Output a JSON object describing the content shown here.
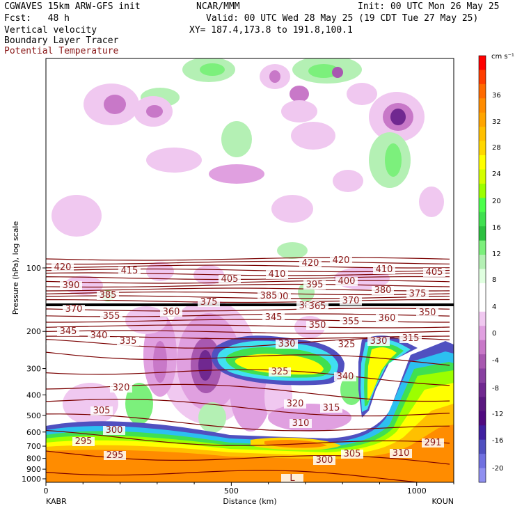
{
  "header": {
    "line1_left": "CGWAVES 15km ARW-GFS init",
    "line1_mid": "NCAR/MMM",
    "line1_right": "Init: 00 UTC Mon 26 May 25",
    "line2_left": "Fcst:   48 h",
    "line2_right": "Valid: 00 UTC Wed 28 May 25 (19 CDT Tue 27 May 25)",
    "line3_left": "Vertical velocity",
    "line3_right": "XY= 187.4,173.8 to 191.8,100.1",
    "line4": "Boundary Layer Tracer",
    "line5": "Potential Temperature"
  },
  "chart_data": {
    "type": "heatmap",
    "xlabel": "Distance (km)",
    "ylabel": "Pressure (hPa), log scale",
    "x_ticks": [
      "0",
      "500",
      "1000"
    ],
    "x_endpoints": [
      "KABR",
      "KOUN"
    ],
    "xlim": [
      0,
      1100
    ],
    "y_ticks": [
      "100",
      "200",
      "300",
      "400",
      "500",
      "600",
      "700",
      "800",
      "900",
      "1000"
    ],
    "y_scale": "log",
    "colorbar": {
      "unit": "cm s⁻¹",
      "labels": [
        "36",
        "32",
        "28",
        "24",
        "20",
        "16",
        "12",
        "8",
        "4",
        "0",
        "-4",
        "-8",
        "-12",
        "-16",
        "-20"
      ],
      "colors": [
        "#ff0000",
        "#ff3d00",
        "#ff6a00",
        "#ff8c00",
        "#ffa500",
        "#ffc000",
        "#ffd700",
        "#ffff00",
        "#d4ff00",
        "#9cff00",
        "#4cff4c",
        "#40e050",
        "#2cc040",
        "#7cf07c",
        "#b4f0b4",
        "#e0ffe0",
        "#ffffff",
        "#ffffff",
        "#f0c8f0",
        "#e0a0e0",
        "#c878c8",
        "#a858b0",
        "#8840a0",
        "#702890",
        "#5a1880",
        "#500a80",
        "#4020a0",
        "#5050c0",
        "#7070e0",
        "#9090f0"
      ]
    },
    "theta_labels": [
      "420",
      "415",
      "410",
      "405",
      "420",
      "420",
      "410",
      "405",
      "400",
      "390",
      "385",
      "395",
      "400",
      "385",
      "380",
      "375",
      "370",
      "380",
      "375",
      "370",
      "365",
      "360",
      "355",
      "345",
      "350",
      "355",
      "360",
      "350",
      "345",
      "340",
      "335",
      "330",
      "330",
      "325",
      "325",
      "340",
      "315",
      "320",
      "320",
      "315",
      "310",
      "305",
      "300",
      "295",
      "295",
      "300",
      "305",
      "310",
      "291",
      "L"
    ],
    "theta_isolines": [
      420,
      415,
      410,
      405,
      400,
      395,
      390,
      385,
      380,
      375,
      370,
      365,
      360,
      355,
      350,
      345,
      340,
      335,
      330,
      325,
      320,
      315,
      310,
      305,
      300,
      295,
      291
    ]
  }
}
